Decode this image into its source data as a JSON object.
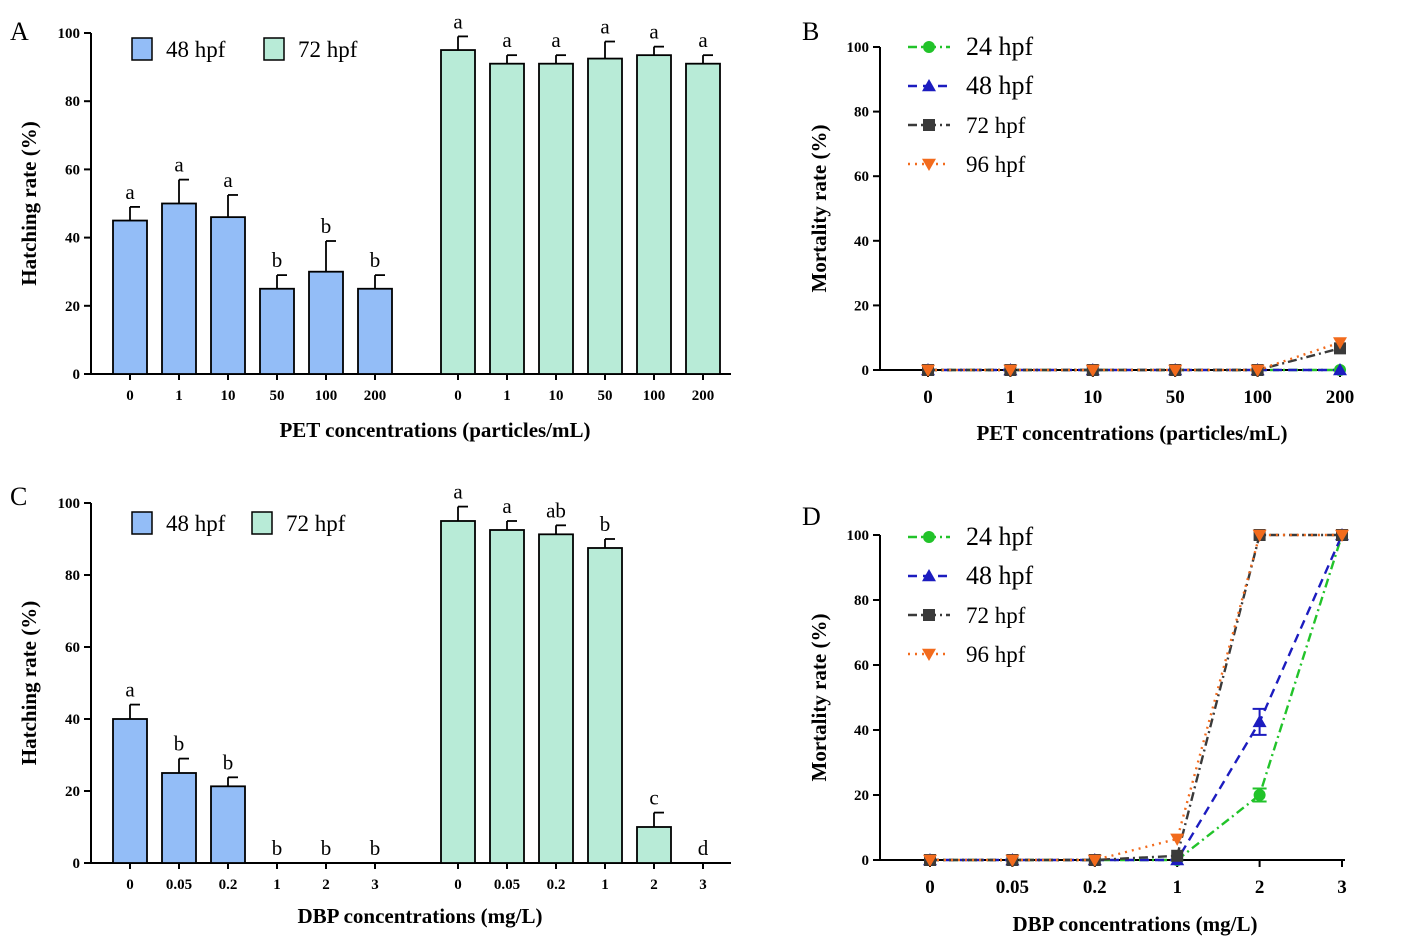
{
  "chart_data": [
    {
      "panel": "A",
      "type": "bar",
      "xlabel": "PET concentrations (particles/mL)",
      "ylabel": "Hatching rate (%)",
      "ylim": [
        0,
        100
      ],
      "yticks": [
        0,
        20,
        40,
        60,
        80,
        100
      ],
      "colors": {
        "48 hpf": "#93bdf7",
        "72 hpf": "#b8ebd7"
      },
      "groups": [
        {
          "name": "48 hpf",
          "categories": [
            "0",
            "1",
            "10",
            "50",
            "100",
            "200"
          ],
          "values": [
            45,
            50,
            46,
            25,
            30,
            25
          ],
          "errors": [
            4,
            7,
            6.5,
            4,
            9,
            4
          ],
          "letters": [
            "a",
            "a",
            "a",
            "b",
            "b",
            "b"
          ]
        },
        {
          "name": "72 hpf",
          "categories": [
            "0",
            "1",
            "10",
            "50",
            "100",
            "200"
          ],
          "values": [
            95,
            91,
            91,
            92.5,
            93.5,
            91
          ],
          "errors": [
            4,
            2.5,
            2.5,
            5,
            2.5,
            2.5
          ],
          "letters": [
            "a",
            "a",
            "a",
            "a",
            "a",
            "a"
          ]
        }
      ],
      "legend": [
        "48 hpf",
        "72 hpf"
      ]
    },
    {
      "panel": "B",
      "type": "line",
      "xlabel": "PET concentrations (particles/mL)",
      "ylabel": "Mortality rate (%)",
      "ylim": [
        0,
        100
      ],
      "yticks": [
        0,
        20,
        40,
        60,
        80,
        100
      ],
      "categories": [
        "0",
        "1",
        "10",
        "50",
        "100",
        "200"
      ],
      "series": [
        {
          "name": "24 hpf",
          "color": "#22c32a",
          "marker": "circle",
          "dash": "dashdot",
          "values": [
            0,
            0,
            0,
            0,
            0,
            0
          ],
          "errors": [
            0,
            0,
            0,
            0,
            0,
            0
          ]
        },
        {
          "name": "48 hpf",
          "color": "#1c1cbf",
          "marker": "triangle",
          "dash": "dashed",
          "values": [
            0,
            0,
            0,
            0,
            0,
            0
          ],
          "errors": [
            0,
            0,
            0,
            0,
            0,
            0
          ]
        },
        {
          "name": "72 hpf",
          "color": "#3a3a3a",
          "marker": "square",
          "dash": "dashdot",
          "values": [
            0,
            0,
            0,
            0,
            0,
            6.7
          ],
          "errors": [
            0,
            0,
            0,
            0,
            0,
            0
          ]
        },
        {
          "name": "96 hpf",
          "color": "#f26b1d",
          "marker": "triangle-down",
          "dash": "dotted",
          "values": [
            0,
            0,
            0,
            0,
            0,
            8.5
          ],
          "errors": [
            0,
            0,
            0,
            0,
            0,
            0
          ]
        }
      ]
    },
    {
      "panel": "C",
      "type": "bar",
      "xlabel": "DBP concentrations (mg/L)",
      "ylabel": "Hatching rate (%)",
      "ylim": [
        0,
        100
      ],
      "yticks": [
        0,
        20,
        40,
        60,
        80,
        100
      ],
      "colors": {
        "48 hpf": "#93bdf7",
        "72 hpf": "#b8ebd7"
      },
      "groups": [
        {
          "name": "48 hpf",
          "categories": [
            "0",
            "0.05",
            "0.2",
            "1",
            "2",
            "3"
          ],
          "values": [
            40,
            25,
            21.3,
            0,
            0,
            0
          ],
          "errors": [
            4,
            4,
            2.5,
            0,
            0,
            0
          ],
          "letters": [
            "a",
            "b",
            "b",
            "b",
            "b",
            "b"
          ]
        },
        {
          "name": "72 hpf",
          "categories": [
            "0",
            "0.05",
            "0.2",
            "1",
            "2",
            "3"
          ],
          "values": [
            95,
            92.5,
            91.3,
            87.5,
            10,
            0
          ],
          "errors": [
            4,
            2.5,
            2.5,
            2.5,
            4,
            0
          ],
          "letters": [
            "a",
            "a",
            "ab",
            "b",
            "c",
            "d"
          ]
        }
      ],
      "legend": [
        "48 hpf",
        "72 hpf"
      ]
    },
    {
      "panel": "D",
      "type": "line",
      "xlabel": "DBP concentrations (mg/L)",
      "ylabel": "Mortality rate (%)",
      "ylim": [
        0,
        100
      ],
      "yticks": [
        0,
        20,
        40,
        60,
        80,
        100
      ],
      "categories": [
        "0",
        "0.05",
        "0.2",
        "1",
        "2",
        "3"
      ],
      "series": [
        {
          "name": "24 hpf",
          "color": "#22c32a",
          "marker": "circle",
          "dash": "dashdot",
          "values": [
            0,
            0,
            0,
            0,
            20,
            100
          ],
          "errors": [
            0,
            0,
            0,
            0,
            2,
            0
          ]
        },
        {
          "name": "48 hpf",
          "color": "#1c1cbf",
          "marker": "triangle",
          "dash": "dashed",
          "values": [
            0,
            0,
            0,
            0,
            42.5,
            100
          ],
          "errors": [
            0,
            0,
            0,
            0,
            4,
            0
          ]
        },
        {
          "name": "72 hpf",
          "color": "#3a3a3a",
          "marker": "square",
          "dash": "dashdot",
          "values": [
            0,
            0,
            0,
            1.3,
            100,
            100
          ],
          "errors": [
            0,
            0,
            0,
            0,
            0,
            0
          ]
        },
        {
          "name": "96 hpf",
          "color": "#f26b1d",
          "marker": "triangle-down",
          "dash": "dotted",
          "values": [
            0,
            0,
            0,
            6.5,
            100,
            100
          ],
          "errors": [
            0,
            0,
            0,
            0,
            0,
            0
          ]
        }
      ]
    }
  ]
}
